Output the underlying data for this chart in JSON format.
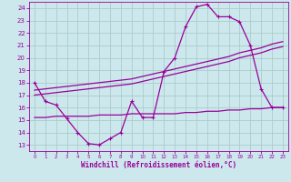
{
  "xlabel": "Windchill (Refroidissement éolien,°C)",
  "bg_color": "#cce8ec",
  "line_color": "#990099",
  "grid_color": "#aacccc",
  "xlim": [
    -0.5,
    23.5
  ],
  "ylim": [
    12.5,
    24.5
  ],
  "yticks": [
    13,
    14,
    15,
    16,
    17,
    18,
    19,
    20,
    21,
    22,
    23,
    24
  ],
  "xticks": [
    0,
    1,
    2,
    3,
    4,
    5,
    6,
    7,
    8,
    9,
    10,
    11,
    12,
    13,
    14,
    15,
    16,
    17,
    18,
    19,
    20,
    21,
    22,
    23
  ],
  "curve1_x": [
    0,
    1,
    2,
    3,
    4,
    5,
    6,
    7,
    8,
    9,
    10,
    11,
    12,
    13,
    14,
    15,
    16,
    17,
    18,
    19,
    20,
    21,
    22,
    23
  ],
  "curve1_y": [
    18.0,
    16.5,
    16.2,
    15.1,
    14.0,
    13.1,
    13.0,
    13.5,
    14.0,
    16.5,
    15.2,
    15.2,
    18.9,
    20.0,
    22.5,
    24.1,
    24.3,
    23.3,
    23.3,
    22.9,
    21.0,
    17.5,
    16.0,
    16.0
  ],
  "curve2_x": [
    0,
    1,
    2,
    3,
    4,
    5,
    6,
    7,
    8,
    9,
    10,
    11,
    12,
    13,
    14,
    15,
    16,
    17,
    18,
    19,
    20,
    21,
    22,
    23
  ],
  "curve2_y": [
    17.0,
    17.1,
    17.2,
    17.3,
    17.4,
    17.5,
    17.6,
    17.7,
    17.8,
    17.9,
    18.1,
    18.3,
    18.5,
    18.7,
    18.9,
    19.1,
    19.3,
    19.5,
    19.7,
    20.0,
    20.2,
    20.4,
    20.7,
    20.9
  ],
  "curve3_x": [
    0,
    1,
    2,
    3,
    4,
    5,
    6,
    7,
    8,
    9,
    10,
    11,
    12,
    13,
    14,
    15,
    16,
    17,
    18,
    19,
    20,
    21,
    22,
    23
  ],
  "curve3_y": [
    17.4,
    17.5,
    17.6,
    17.7,
    17.8,
    17.9,
    18.0,
    18.1,
    18.2,
    18.3,
    18.5,
    18.7,
    18.9,
    19.1,
    19.3,
    19.5,
    19.7,
    19.9,
    20.1,
    20.4,
    20.6,
    20.8,
    21.1,
    21.3
  ],
  "curve4_x": [
    0,
    1,
    2,
    3,
    4,
    5,
    6,
    7,
    8,
    9,
    10,
    11,
    12,
    13,
    14,
    15,
    16,
    17,
    18,
    19,
    20,
    21,
    22,
    23
  ],
  "curve4_y": [
    15.2,
    15.2,
    15.3,
    15.3,
    15.3,
    15.3,
    15.4,
    15.4,
    15.4,
    15.5,
    15.5,
    15.5,
    15.5,
    15.5,
    15.6,
    15.6,
    15.7,
    15.7,
    15.8,
    15.8,
    15.9,
    15.9,
    16.0,
    16.0
  ]
}
